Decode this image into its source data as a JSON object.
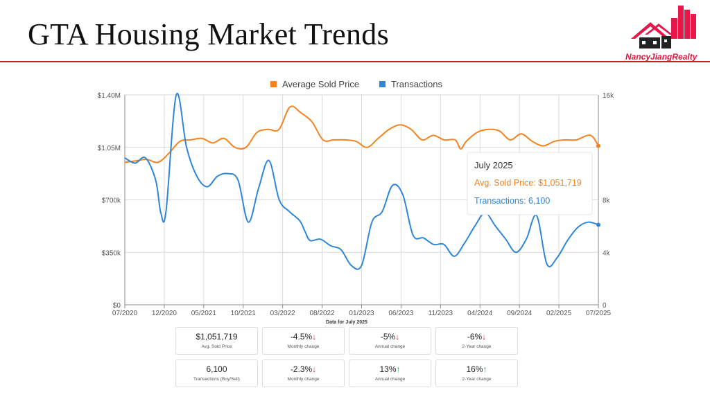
{
  "page_title": "GTA Housing Market Trends",
  "logo": {
    "text": "NancyJiangRealty",
    "icon": "house-cityscape-icon",
    "color": "#e8174a"
  },
  "chart_data": {
    "type": "line",
    "legend": {
      "position": "top-center"
    },
    "x_labels": [
      "07/2020",
      "12/2020",
      "05/2021",
      "10/2021",
      "03/2022",
      "08/2022",
      "01/2023",
      "06/2023",
      "11/2023",
      "04/2024",
      "09/2024",
      "02/2025",
      "07/2025"
    ],
    "left_axis": {
      "ticks": [
        "$0",
        "$350k",
        "$700k",
        "$1.05M",
        "$1.40M"
      ],
      "range": [
        0,
        1400000
      ]
    },
    "right_axis": {
      "ticks": [
        "0",
        "4k",
        "8k",
        "16k"
      ],
      "range": [
        0,
        16000
      ],
      "tick_values": [
        0,
        4000,
        8000,
        16000
      ]
    },
    "grid": true,
    "series": [
      {
        "name": "Average Sold Price",
        "color": "#f5821f",
        "axis": "left",
        "points": [
          [
            0,
            950000
          ],
          [
            2,
            960000
          ],
          [
            4,
            970000
          ],
          [
            6,
            950000
          ],
          [
            8,
            1010000
          ],
          [
            10,
            1090000
          ],
          [
            12,
            1100000
          ],
          [
            14,
            1110000
          ],
          [
            16,
            1080000
          ],
          [
            18,
            1110000
          ],
          [
            20,
            1050000
          ],
          [
            22,
            1050000
          ],
          [
            24,
            1150000
          ],
          [
            26,
            1170000
          ],
          [
            28,
            1170000
          ],
          [
            30,
            1320000
          ],
          [
            32,
            1280000
          ],
          [
            34,
            1220000
          ],
          [
            36,
            1100000
          ],
          [
            38,
            1100000
          ],
          [
            40,
            1100000
          ],
          [
            42,
            1090000
          ],
          [
            44,
            1050000
          ],
          [
            46,
            1110000
          ],
          [
            48,
            1170000
          ],
          [
            50,
            1200000
          ],
          [
            52,
            1170000
          ],
          [
            54,
            1100000
          ],
          [
            56,
            1130000
          ],
          [
            58,
            1100000
          ],
          [
            60,
            1100000
          ],
          [
            61,
            1040000
          ],
          [
            62,
            1090000
          ],
          [
            64,
            1150000
          ],
          [
            66,
            1170000
          ],
          [
            68,
            1160000
          ],
          [
            70,
            1100000
          ],
          [
            72,
            1140000
          ],
          [
            74,
            1090000
          ],
          [
            76,
            1060000
          ],
          [
            78,
            1090000
          ],
          [
            80,
            1100000
          ],
          [
            82,
            1100000
          ],
          [
            84,
            1130000
          ],
          [
            85,
            1120000
          ],
          [
            86,
            1060000
          ]
        ]
      },
      {
        "name": "Transactions",
        "color": "#2d86d8",
        "axis": "right",
        "points": [
          [
            0,
            11200
          ],
          [
            2,
            10800
          ],
          [
            4,
            11200
          ],
          [
            6,
            9500
          ],
          [
            7,
            7000
          ],
          [
            8,
            7100
          ],
          [
            10,
            16000
          ],
          [
            12,
            12000
          ],
          [
            14,
            9800
          ],
          [
            16,
            9000
          ],
          [
            18,
            9800
          ],
          [
            20,
            10000
          ],
          [
            22,
            9500
          ],
          [
            24,
            6300
          ],
          [
            26,
            8900
          ],
          [
            28,
            11000
          ],
          [
            30,
            8000
          ],
          [
            32,
            7100
          ],
          [
            34,
            6400
          ],
          [
            35,
            5600
          ],
          [
            36,
            4900
          ],
          [
            38,
            5000
          ],
          [
            40,
            4500
          ],
          [
            42,
            4200
          ],
          [
            44,
            3000
          ],
          [
            46,
            3000
          ],
          [
            48,
            6300
          ],
          [
            50,
            7100
          ],
          [
            52,
            9100
          ],
          [
            54,
            8400
          ],
          [
            56,
            5300
          ],
          [
            58,
            5100
          ],
          [
            60,
            4600
          ],
          [
            62,
            4600
          ],
          [
            64,
            3700
          ],
          [
            66,
            4700
          ],
          [
            68,
            6000
          ],
          [
            70,
            7000
          ],
          [
            72,
            6000
          ],
          [
            74,
            5000
          ],
          [
            76,
            4000
          ],
          [
            78,
            5000
          ],
          [
            80,
            6800
          ],
          [
            82,
            3100
          ],
          [
            84,
            3600
          ],
          [
            86,
            4900
          ],
          [
            88,
            5900
          ],
          [
            90,
            6300
          ],
          [
            92,
            6100
          ]
        ]
      }
    ],
    "tooltip": {
      "title": "July 2025",
      "price_label": "Avg. Sold Price: $1,051,719",
      "transactions_label": "Transactions: 6,100"
    }
  },
  "data_for_label": "Data for July 2025",
  "stats": [
    [
      {
        "value": "$1,051,719",
        "label": "Avg. Sold Price",
        "arrow": ""
      },
      {
        "value": "-4.5%",
        "label": "Monthly change",
        "arrow": "down"
      },
      {
        "value": "-5%",
        "label": "Annual change",
        "arrow": "down"
      },
      {
        "value": "-6%",
        "label": "2-Year change",
        "arrow": "down"
      }
    ],
    [
      {
        "value": "6,100",
        "label": "Transactions (Buy/Sell)",
        "arrow": ""
      },
      {
        "value": "-2.3%",
        "label": "Monthly change",
        "arrow": "down"
      },
      {
        "value": "13%",
        "label": "Annual change",
        "arrow": "up"
      },
      {
        "value": "16%",
        "label": "2-Year change",
        "arrow": "up"
      }
    ]
  ]
}
